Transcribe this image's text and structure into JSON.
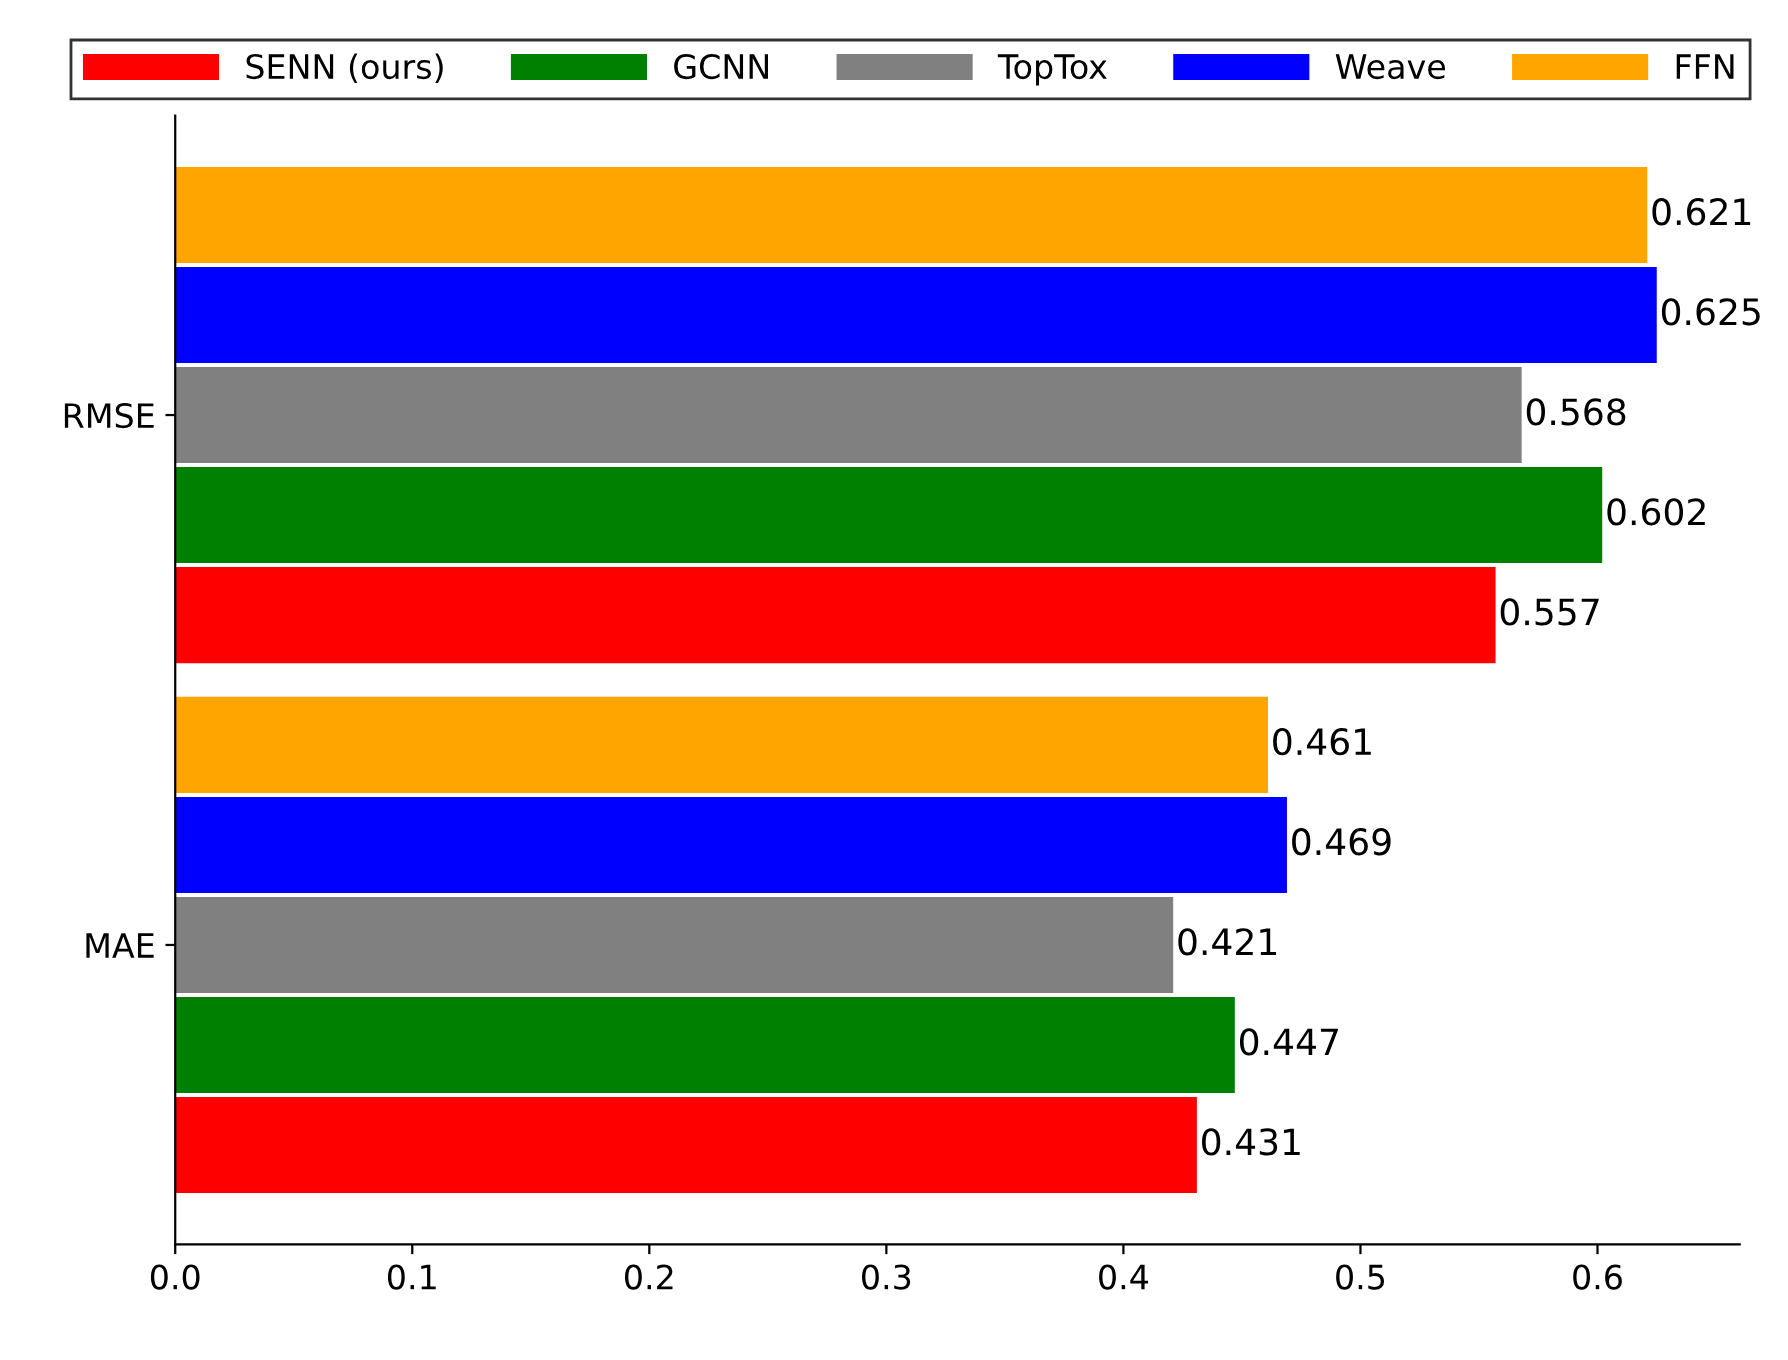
{
  "chart_data": {
    "type": "bar",
    "orientation": "horizontal",
    "categories": [
      "RMSE",
      "MAE"
    ],
    "series": [
      {
        "name": "SENN (ours)",
        "color": "#ff0000",
        "values": [
          0.557,
          0.431
        ]
      },
      {
        "name": "GCNN",
        "color": "#008000",
        "values": [
          0.602,
          0.447
        ]
      },
      {
        "name": "TopTox",
        "color": "#808080",
        "values": [
          0.568,
          0.421
        ]
      },
      {
        "name": "Weave",
        "color": "#0000ff",
        "values": [
          0.625,
          0.469
        ]
      },
      {
        "name": "FFN",
        "color": "#ffa500",
        "values": [
          0.621,
          0.461
        ]
      }
    ],
    "xlim": [
      0,
      0.66
    ],
    "xticks": [
      {
        "value": 0,
        "label": "0.0"
      },
      0.1,
      0.2,
      0.3,
      0.4,
      0.5,
      0.6
    ],
    "data_labels": true,
    "legend": "top",
    "grid": false
  }
}
